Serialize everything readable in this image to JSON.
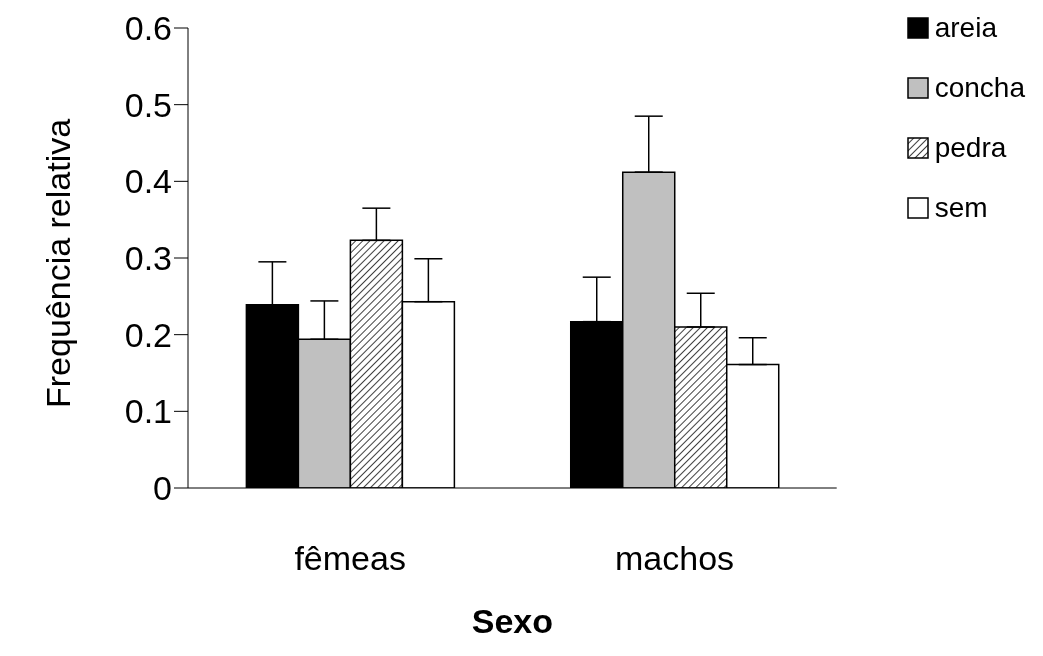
{
  "chart_data": {
    "type": "bar",
    "xlabel": "Sexo",
    "ylabel": "Frequência relativa",
    "categories": [
      "fêmeas",
      "machos"
    ],
    "series": [
      {
        "name": "areia",
        "color": "#000000",
        "values": [
          0.239,
          0.217
        ],
        "errors": [
          [
            0.239,
            0.295
          ],
          [
            0.217,
            0.275
          ]
        ]
      },
      {
        "name": "concha",
        "color": "#c0c0c0",
        "values": [
          0.194,
          0.412
        ],
        "errors": [
          [
            0.194,
            0.244
          ],
          [
            0.412,
            0.485
          ]
        ]
      },
      {
        "name": "pedra",
        "color": "#000000",
        "values": [
          0.323,
          0.21
        ],
        "errors": [
          [
            0.323,
            0.365
          ],
          [
            0.21,
            0.254
          ]
        ]
      },
      {
        "name": "sem",
        "color": "#ffffff",
        "values": [
          0.243,
          0.161
        ],
        "errors": [
          [
            0.243,
            0.299
          ],
          [
            0.161,
            0.196
          ]
        ]
      }
    ],
    "ylim": [
      0,
      0.6
    ],
    "yticks": [
      0,
      0.1,
      0.2,
      0.3,
      0.4,
      0.5,
      0.6
    ],
    "grid": false,
    "legend": "top right"
  }
}
